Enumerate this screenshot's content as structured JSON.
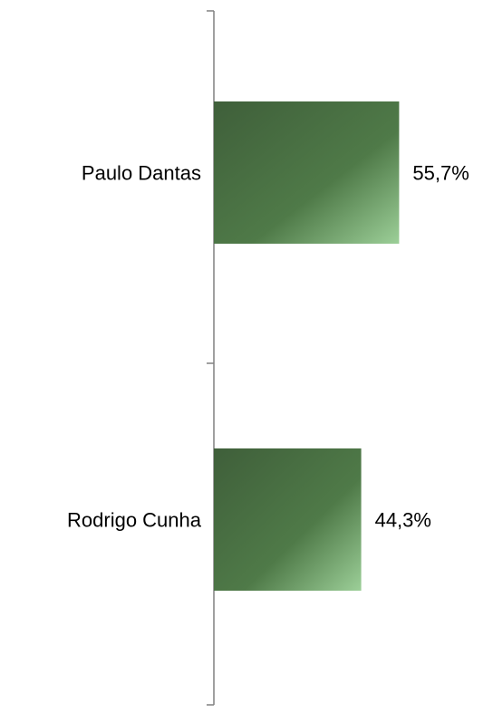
{
  "chart_data": {
    "type": "bar",
    "orientation": "horizontal",
    "categories": [
      "Paulo Dantas",
      "Rodrigo Cunha"
    ],
    "values": [
      55.7,
      44.3
    ],
    "value_labels": [
      "55,7%",
      "44,3%"
    ],
    "title": "",
    "xlabel": "",
    "ylabel": "",
    "xlim": [
      0,
      100
    ],
    "grid": false,
    "legend": "none",
    "colors": {
      "bar_dark": "#3f5f3a",
      "bar_mid": "#4f7a48",
      "bar_light": "#9ccf98",
      "axis": "#808080"
    }
  }
}
